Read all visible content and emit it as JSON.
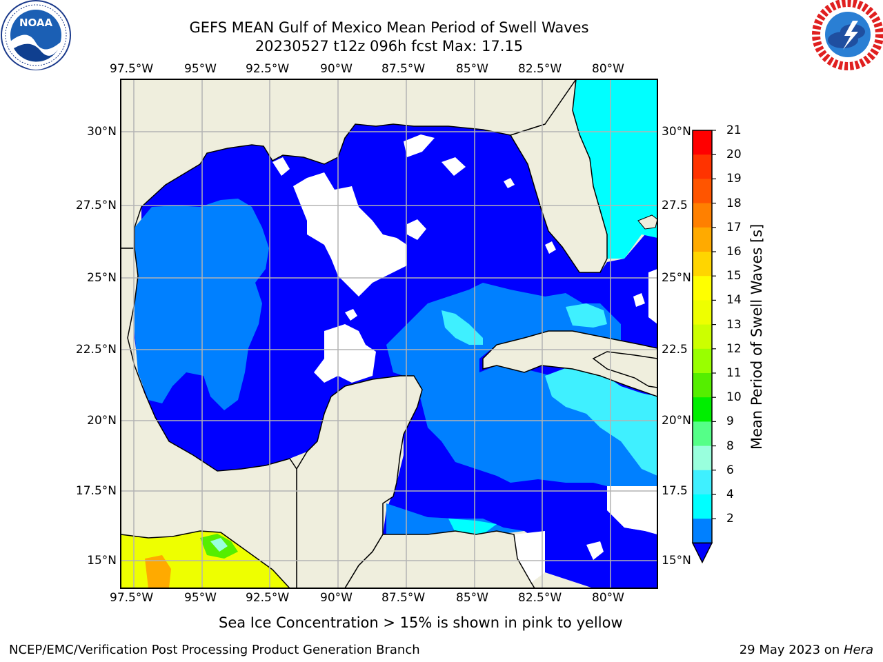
{
  "header": {
    "title_line1": "GEFS MEAN Gulf of Mexico Mean Period of Swell Waves",
    "title_line2": "20230527 t12z 096h fcst   Max: 17.15"
  },
  "logos": {
    "left": {
      "icon": "noaa-logo",
      "ring_text": "NATIONAL OCEANIC AND ATMOSPHERIC ADMINISTRATION · U.S. DEPARTMENT OF COMMERCE",
      "center_text": "NOAA"
    },
    "right": {
      "icon": "nws-logo",
      "ring_text": "NATIONAL WEATHER SERVICE"
    }
  },
  "map": {
    "lon_labels": [
      "97.5°W",
      "95°W",
      "92.5°W",
      "90°W",
      "87.5°W",
      "85°W",
      "82.5°W",
      "80°W"
    ],
    "lat_labels_left": [
      "30°N",
      "27.5°N",
      "25°N",
      "22.5°N",
      "20°N",
      "17.5°N",
      "15°N"
    ],
    "lat_labels_right": [
      "30°N",
      "27.5",
      "25°N",
      "22.5",
      "20°N",
      "17.5",
      "15°N"
    ],
    "colors": {
      "land": "#efeedd",
      "ocean_blue": "#0000ff",
      "mid_blue": "#0080ff",
      "cyan": "#00ffff",
      "light_cyan": "#3ff0ff",
      "gridline": "#b3b3b3",
      "missing": "#ffffff"
    }
  },
  "colorbar": {
    "label": "Mean Period of Swell Waves [s]",
    "ticks": [
      "21",
      "20",
      "19",
      "18",
      "17",
      "16",
      "15",
      "14",
      "13",
      "12",
      "11",
      "10",
      "9",
      "8",
      "6",
      "4",
      "2"
    ],
    "colors": [
      "#ff0000",
      "#ff3300",
      "#ff5500",
      "#ff8000",
      "#ffaa00",
      "#ffd500",
      "#ffff00",
      "#eeff00",
      "#ccff00",
      "#99ff00",
      "#55ee00",
      "#00ee00",
      "#55ff88",
      "#99ffdd",
      "#3ff0ff",
      "#00ffff",
      "#0080ff"
    ],
    "extend_color": "#0000ff"
  },
  "footer": {
    "note": "Sea Ice Concentration > 15% is shown in pink to yellow",
    "left": "NCEP/EMC/Verification Post Processing Product Generation Branch",
    "right_date": "29 May 2023 on ",
    "right_host": "Hera"
  }
}
